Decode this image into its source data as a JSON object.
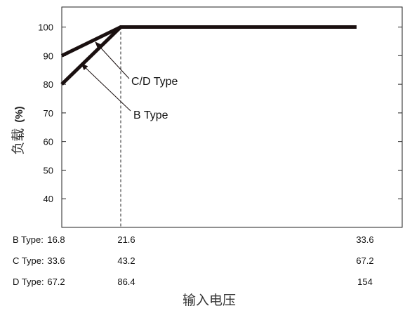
{
  "chart_data": {
    "type": "line",
    "ylabel": "负载",
    "ylabel_unit": "(%)",
    "xlabel": "输入电压",
    "ylim": [
      30,
      107
    ],
    "y_ticks": [
      40,
      50,
      60,
      70,
      80,
      90,
      100
    ],
    "x_positions": [
      "16.8",
      "21.6",
      "33.6"
    ],
    "x_rows": [
      {
        "label": "B Type:",
        "values": [
          "16.8",
          "21.6",
          "33.6"
        ]
      },
      {
        "label": "C Type:",
        "values": [
          "33.6",
          "43.2",
          "67.2"
        ]
      },
      {
        "label": "D Type:",
        "values": [
          "67.2",
          "86.4",
          "154"
        ]
      }
    ],
    "series": [
      {
        "name": "C/D Type",
        "points": [
          {
            "x": 16.8,
            "y": 90
          },
          {
            "x": 21.6,
            "y": 100
          },
          {
            "x": 33.6,
            "y": 100
          }
        ]
      },
      {
        "name": "B Type",
        "points": [
          {
            "x": 16.8,
            "y": 80
          },
          {
            "x": 21.6,
            "y": 100
          },
          {
            "x": 33.6,
            "y": 100
          }
        ]
      }
    ],
    "reference_line": {
      "x": 21.6,
      "style": "dashed"
    },
    "annotations": [
      {
        "text": "C/D Type",
        "series": "C/D Type"
      },
      {
        "text": "B Type",
        "series": "B Type"
      }
    ],
    "grid": false
  },
  "colors": {
    "line": "#1a1010",
    "axis": "#222222",
    "text": "#111111"
  }
}
